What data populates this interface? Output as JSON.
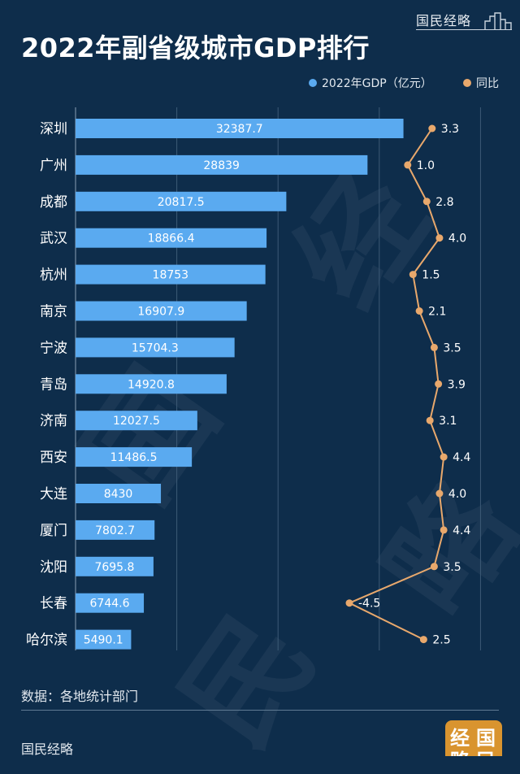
{
  "header": {
    "brand": "国民经略",
    "title": "2022年副省级城市GDP排行"
  },
  "legend": {
    "gdp_label": "2022年GDP（亿元）",
    "growth_label": "同比",
    "gdp_color": "#5aaaf0",
    "growth_color": "#e8a86c"
  },
  "chart_data": {
    "type": "bar",
    "orientation": "horizontal",
    "categories": [
      "深圳",
      "广州",
      "成都",
      "武汉",
      "杭州",
      "南京",
      "宁波",
      "青岛",
      "济南",
      "西安",
      "大连",
      "厦门",
      "沈阳",
      "长春",
      "哈尔滨"
    ],
    "series": [
      {
        "name": "2022年GDP（亿元）",
        "type": "bar",
        "values": [
          32387.7,
          28839,
          20817.5,
          18866.4,
          18753,
          16907.9,
          15704.3,
          14920.8,
          12027.5,
          11486.5,
          8430,
          7802.7,
          7695.8,
          6744.6,
          5490.1
        ],
        "labels": [
          "32387.7",
          "28839",
          "20817.5",
          "18866.4",
          "18753",
          "16907.9",
          "15704.3",
          "14920.8",
          "12027.5",
          "11486.5",
          "8430",
          "7802.7",
          "7695.8",
          "6744.6",
          "5490.1"
        ]
      },
      {
        "name": "同比",
        "type": "line",
        "values": [
          3.3,
          1.0,
          2.8,
          4.0,
          1.5,
          2.1,
          3.5,
          3.9,
          3.1,
          4.4,
          4.0,
          4.4,
          3.5,
          -4.5,
          2.5
        ],
        "labels": [
          "3.3",
          "1.0",
          "2.8",
          "4.0",
          "1.5",
          "2.1",
          "3.5",
          "3.9",
          "3.1",
          "4.4",
          "4.0",
          "4.4",
          "3.5",
          "-4.5",
          "2.5"
        ]
      }
    ],
    "xlim": [
      0,
      40000
    ],
    "growth_range": [
      -4.5,
      4.4
    ],
    "grid": true,
    "legend_position": "top-right"
  },
  "footer": {
    "source": "数据：各地统计部门",
    "brand": "国民经略",
    "seal_text": [
      "经",
      "国",
      "略",
      "民"
    ]
  },
  "watermark": [
    "国",
    "民",
    "经",
    "略"
  ]
}
